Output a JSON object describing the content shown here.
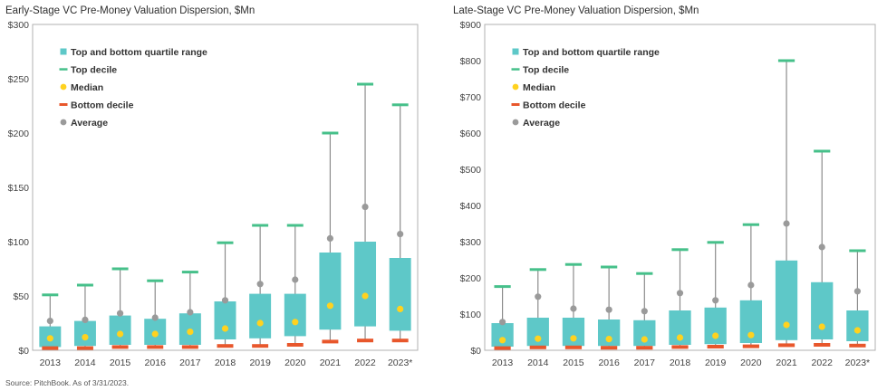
{
  "colors": {
    "quartile": "#5ec8c8",
    "top_decile": "#46c08a",
    "median": "#ffd21f",
    "bottom_decile": "#e8572c",
    "average": "#9a9a9a",
    "whisker": "#8c8c8c",
    "frame": "#b0b0b0"
  },
  "footer": {
    "source": "Source: PitchBook. As of 3/31/2023."
  },
  "chart_data": [
    {
      "type": "box",
      "title": "Early-Stage VC Pre-Money Valuation Dispersion, $Mn",
      "ylim": [
        0,
        300
      ],
      "yticks": [
        0,
        50,
        100,
        150,
        200,
        250,
        300
      ],
      "ytick_labels": [
        "$0",
        "$50",
        "$100",
        "$150",
        "$200",
        "$250",
        "$300"
      ],
      "categories": [
        "2013",
        "2014",
        "2015",
        "2016",
        "2017",
        "2018",
        "2019",
        "2020",
        "2021",
        "2022",
        "2023*"
      ],
      "legend": [
        "Top and bottom quartile range",
        "Top decile",
        "Median",
        "Bottom decile",
        "Average"
      ],
      "legend_position": "top-left",
      "q1": [
        3,
        4,
        5,
        5,
        5,
        10,
        11,
        13,
        19,
        22,
        18
      ],
      "q3": [
        22,
        27,
        32,
        29,
        34,
        45,
        52,
        52,
        90,
        100,
        85
      ],
      "top_decile": [
        51,
        60,
        75,
        64,
        72,
        99,
        115,
        115,
        200,
        245,
        226
      ],
      "median": [
        11,
        12,
        15,
        15,
        17,
        20,
        25,
        26,
        41,
        50,
        38
      ],
      "bottom_decile": [
        2,
        2,
        3,
        3,
        3,
        4,
        4,
        5,
        8,
        9,
        9
      ],
      "average": [
        27,
        28,
        34,
        30,
        35,
        46,
        61,
        65,
        103,
        132,
        107
      ],
      "grid": false
    },
    {
      "type": "box",
      "title": "Late-Stage VC Pre-Money Valuation Dispersion, $Mn",
      "ylim": [
        0,
        900
      ],
      "yticks": [
        0,
        100,
        200,
        300,
        400,
        500,
        600,
        700,
        800,
        900
      ],
      "ytick_labels": [
        "$0",
        "$100",
        "$200",
        "$300",
        "$400",
        "$500",
        "$600",
        "$700",
        "$800",
        "$900"
      ],
      "categories": [
        "2013",
        "2014",
        "2015",
        "2016",
        "2017",
        "2018",
        "2019",
        "2020",
        "2021",
        "2022",
        "2023*"
      ],
      "legend": [
        "Top and bottom quartile range",
        "Top decile",
        "Median",
        "Bottom decile",
        "Average"
      ],
      "legend_position": "top-left",
      "q1": [
        10,
        12,
        12,
        12,
        12,
        15,
        17,
        20,
        28,
        30,
        25
      ],
      "q3": [
        75,
        90,
        90,
        85,
        83,
        110,
        118,
        138,
        248,
        188,
        110
      ],
      "top_decile": [
        176,
        223,
        237,
        230,
        212,
        278,
        298,
        347,
        800,
        550,
        275
      ],
      "median": [
        28,
        32,
        33,
        31,
        30,
        35,
        40,
        42,
        70,
        65,
        55
      ],
      "bottom_decile": [
        6,
        8,
        8,
        7,
        7,
        9,
        10,
        11,
        14,
        15,
        13
      ],
      "average": [
        78,
        148,
        115,
        112,
        108,
        158,
        138,
        180,
        350,
        285,
        163
      ],
      "grid": false
    }
  ]
}
